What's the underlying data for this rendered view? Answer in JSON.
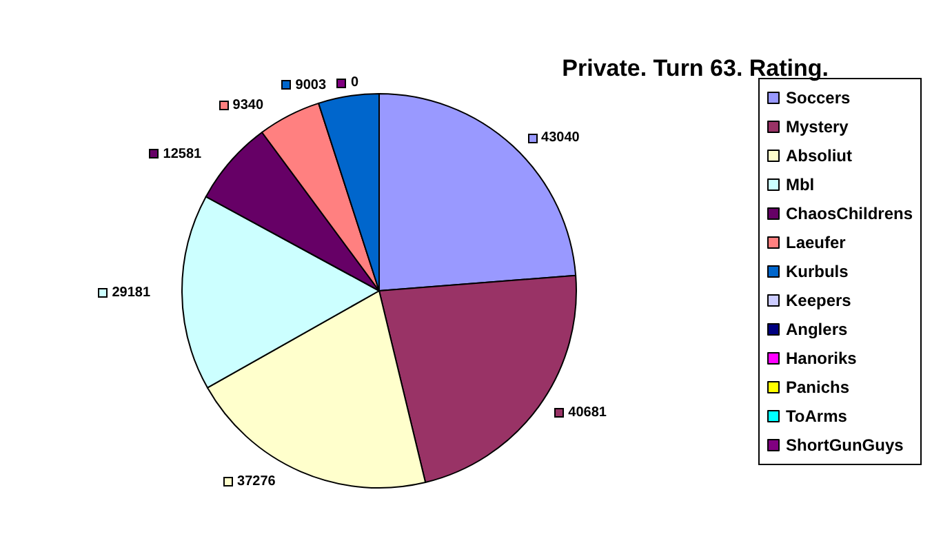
{
  "chart_data": {
    "type": "pie",
    "title": "Private. Turn 63. Rating.",
    "categories": [
      "Soccers",
      "Mystery",
      "Absoliut",
      "Mbl",
      "ChaosChildrens",
      "Laeufer",
      "Kurbuls",
      "Keepers",
      "Anglers",
      "Hanoriks",
      "Panichs",
      "ToArms",
      "ShortGunGuys"
    ],
    "values": [
      43040,
      40681,
      37276,
      29181,
      12581,
      9340,
      9003,
      0,
      0,
      0,
      0,
      0,
      0
    ],
    "colors": [
      "#9999ff",
      "#993366",
      "#ffffcc",
      "#ccffff",
      "#660066",
      "#ff8080",
      "#0066cc",
      "#ccccff",
      "#000080",
      "#ff00ff",
      "#ffff00",
      "#00ffff",
      "#800080"
    ],
    "value_labels": [
      "43040",
      "40681",
      "37276",
      "29181",
      "12581",
      "9340",
      "9003",
      null,
      null,
      null,
      null,
      null,
      "0"
    ],
    "legend": "right"
  }
}
